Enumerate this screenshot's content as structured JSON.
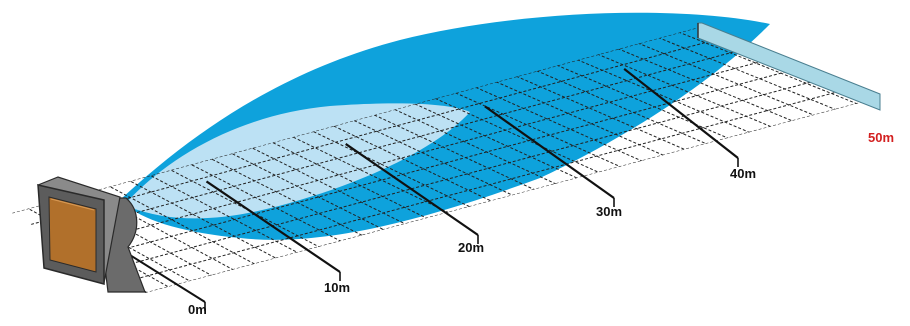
{
  "diagram": {
    "distance_labels": [
      {
        "key": "d0",
        "text": "0m"
      },
      {
        "key": "d10",
        "text": "10m"
      },
      {
        "key": "d20",
        "text": "20m"
      },
      {
        "key": "d30",
        "text": "30m"
      },
      {
        "key": "d40",
        "text": "40m"
      },
      {
        "key": "d50",
        "text": "50m"
      }
    ],
    "colors": {
      "wide_zone": "#0ea2dc",
      "near_zone": "#cfe8f6",
      "grid_lines": "#222222",
      "distance_markers": "#111111",
      "end_label": "#d32020",
      "distance_label": "#111111",
      "sensor_body": "#5c5c5c",
      "sensor_lens": "#b1702b",
      "target_bar": "#a9d8e6"
    },
    "icons": [
      "sensor-icon",
      "target-bar-icon"
    ]
  }
}
